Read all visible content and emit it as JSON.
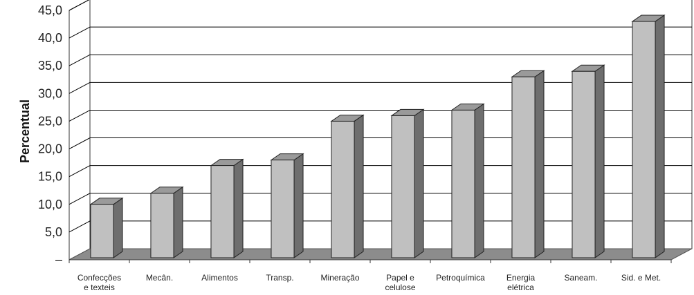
{
  "chart_data": {
    "type": "bar",
    "title": "",
    "xlabel": "",
    "ylabel": "Percentual",
    "categories": [
      [
        "Confecções",
        "e texteis"
      ],
      [
        "Mecân."
      ],
      [
        "Alimentos"
      ],
      [
        "Transp."
      ],
      [
        "Mineração"
      ],
      [
        "Papel e",
        "celulose"
      ],
      [
        "Petroquímica"
      ],
      [
        "Energia",
        "elétrica"
      ],
      [
        "Saneam."
      ],
      [
        "Sid. e Met."
      ]
    ],
    "values": [
      10,
      12,
      17,
      18,
      25,
      26,
      27,
      33,
      34,
      43
    ],
    "ylim": [
      0,
      45
    ],
    "yticks": [
      "–",
      "5,0",
      "10,0",
      "15,0",
      "20,0",
      "25,0",
      "30,0",
      "35,0",
      "40,0",
      "45,0"
    ],
    "grid": true,
    "legend": "none",
    "style": "3d-column",
    "colors": {
      "bar_front": "#c0c0c0",
      "bar_side": "#6e6e6e",
      "bar_top": "#9a9a9a",
      "floor": "#8c8c8c",
      "grid": "#000000"
    }
  }
}
